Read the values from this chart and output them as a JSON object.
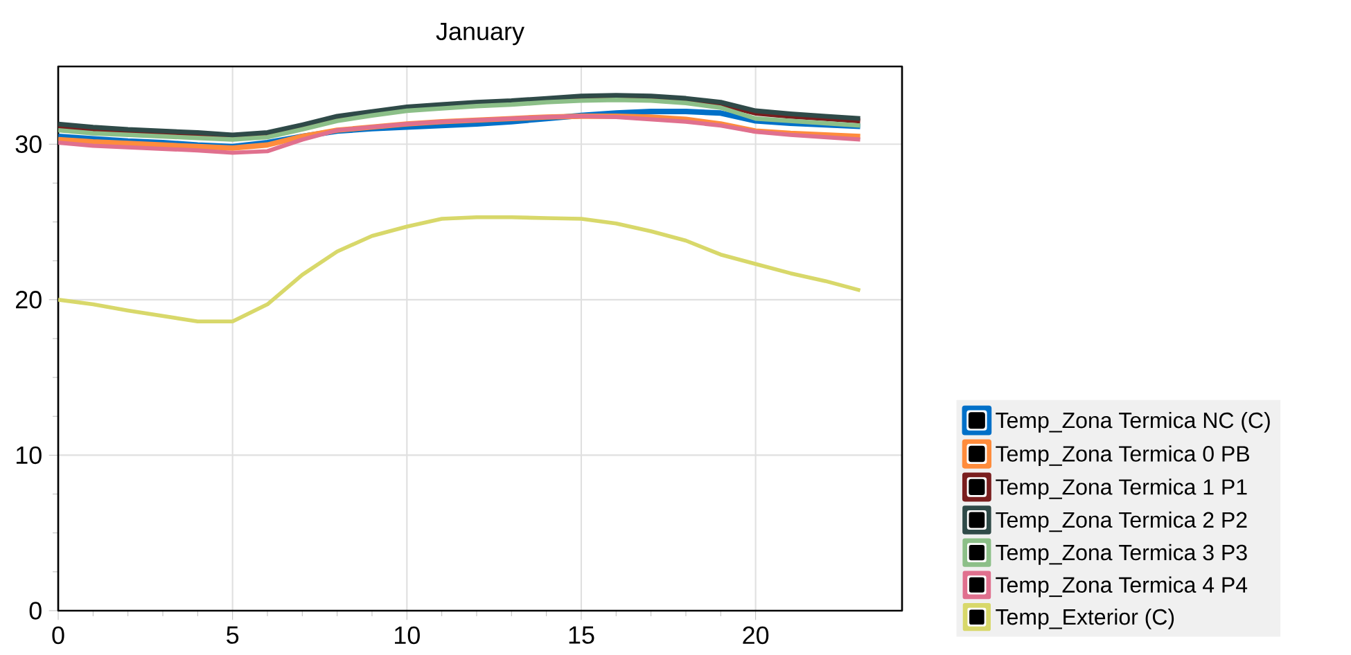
{
  "chart_data": {
    "type": "line",
    "title": "January",
    "x": [
      0,
      1,
      2,
      3,
      4,
      5,
      6,
      7,
      8,
      9,
      10,
      11,
      12,
      13,
      14,
      15,
      16,
      17,
      18,
      19,
      20,
      21,
      22,
      23
    ],
    "xlim": [
      0,
      24.2
    ],
    "xticks": [
      0,
      5,
      10,
      15,
      20
    ],
    "ylim": [
      0,
      35
    ],
    "yticks": [
      0,
      10,
      20,
      30
    ],
    "grid": true,
    "legend": "right",
    "marker": "none",
    "line_style": "solid",
    "series": [
      {
        "name": "Temp_Zona Termica NC (C)",
        "color": "#0070c8",
        "values": [
          30.5,
          30.35,
          30.2,
          30.1,
          29.95,
          29.85,
          30.1,
          30.5,
          30.85,
          31.0,
          31.1,
          31.2,
          31.3,
          31.45,
          31.65,
          31.85,
          32.0,
          32.1,
          32.1,
          32.0,
          31.5,
          31.35,
          31.25,
          31.15
        ]
      },
      {
        "name": "Temp_Zona Termica 0 PB",
        "color": "#ff8c3c",
        "values": [
          30.3,
          30.15,
          30.05,
          29.95,
          29.85,
          29.75,
          29.95,
          30.5,
          30.9,
          31.1,
          31.3,
          31.45,
          31.55,
          31.65,
          31.75,
          31.8,
          31.8,
          31.75,
          31.6,
          31.3,
          30.85,
          30.7,
          30.6,
          30.5
        ]
      },
      {
        "name": "Temp_Zona Termica 1 P1",
        "color": "#7a1e1e",
        "values": [
          31.15,
          30.95,
          30.8,
          30.7,
          30.6,
          30.45,
          30.6,
          31.1,
          31.6,
          31.95,
          32.25,
          32.4,
          32.55,
          32.65,
          32.8,
          32.95,
          33.0,
          32.95,
          32.8,
          32.55,
          32.0,
          31.8,
          31.65,
          31.5
        ]
      },
      {
        "name": "Temp_Zona Termica 2 P2",
        "color": "#2f4a48",
        "values": [
          31.3,
          31.1,
          30.95,
          30.85,
          30.75,
          30.6,
          30.75,
          31.25,
          31.8,
          32.1,
          32.4,
          32.55,
          32.7,
          32.8,
          32.95,
          33.1,
          33.15,
          33.1,
          32.95,
          32.7,
          32.15,
          31.95,
          31.8,
          31.65
        ]
      },
      {
        "name": "Temp_Zona Termica 3 P3",
        "color": "#8cbf88",
        "values": [
          30.9,
          30.7,
          30.6,
          30.5,
          30.4,
          30.3,
          30.45,
          30.95,
          31.5,
          31.85,
          32.15,
          32.3,
          32.45,
          32.55,
          32.7,
          32.8,
          32.85,
          32.8,
          32.65,
          32.35,
          31.65,
          31.5,
          31.35,
          31.2
        ]
      },
      {
        "name": "Temp_Zona Termica 4 P4",
        "color": "#e0708e",
        "values": [
          30.1,
          29.9,
          29.8,
          29.7,
          29.6,
          29.45,
          29.55,
          30.3,
          30.9,
          31.1,
          31.3,
          31.45,
          31.55,
          31.65,
          31.75,
          31.8,
          31.75,
          31.6,
          31.45,
          31.2,
          30.8,
          30.6,
          30.45,
          30.3
        ]
      },
      {
        "name": "Temp_Exterior (C)",
        "color": "#d8d86a",
        "values": [
          20.0,
          19.7,
          19.3,
          18.95,
          18.6,
          18.6,
          19.7,
          21.6,
          23.1,
          24.1,
          24.7,
          25.2,
          25.3,
          25.3,
          25.25,
          25.2,
          24.9,
          24.4,
          23.8,
          22.9,
          22.3,
          21.7,
          21.2,
          20.6
        ]
      }
    ]
  }
}
